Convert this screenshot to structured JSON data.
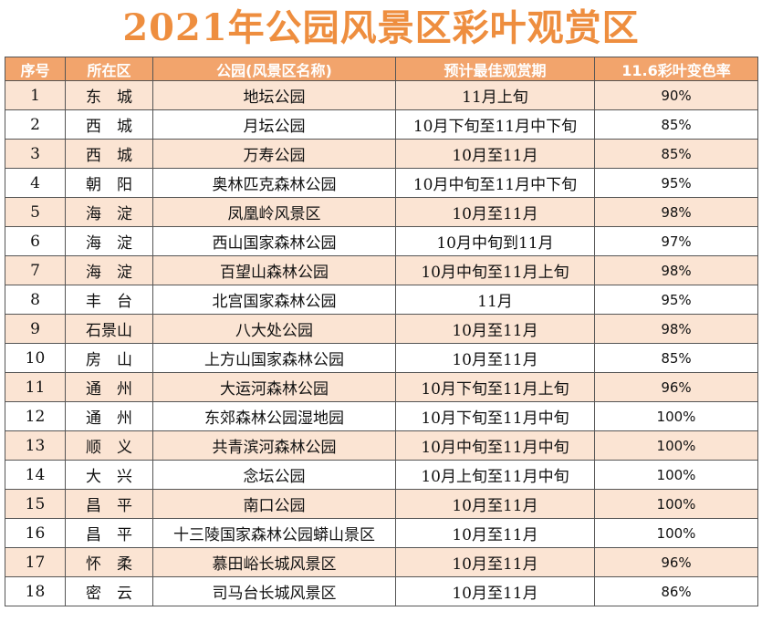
{
  "title": "2021年公园风景区彩叶观赏区",
  "headers": [
    "序号",
    "所在区",
    "公园(风景区名称)",
    "预计最佳观赏期",
    "11.6彩叶变色率"
  ],
  "rows": [
    {
      "no": "1",
      "district": "东　城",
      "park": "地坛公园",
      "period": "11月上旬",
      "rate": "90%"
    },
    {
      "no": "2",
      "district": "西　城",
      "park": "月坛公园",
      "period": "10月下旬至11月中下旬",
      "rate": "85%"
    },
    {
      "no": "3",
      "district": "西　城",
      "park": "万寿公园",
      "period": "10月至11月",
      "rate": "85%"
    },
    {
      "no": "4",
      "district": "朝　阳",
      "park": "奥林匹克森林公园",
      "period": "10月中旬至11月中下旬",
      "rate": "95%"
    },
    {
      "no": "5",
      "district": "海　淀",
      "park": "凤凰岭风景区",
      "period": "10月至11月",
      "rate": "98%"
    },
    {
      "no": "6",
      "district": "海　淀",
      "park": "西山国家森林公园",
      "period": "10月中旬到11月",
      "rate": "97%"
    },
    {
      "no": "7",
      "district": "海　淀",
      "park": "百望山森林公园",
      "period": "10月中旬至11月上旬",
      "rate": "98%"
    },
    {
      "no": "8",
      "district": "丰　台",
      "park": "北宫国家森林公园",
      "period": "11月",
      "rate": "95%"
    },
    {
      "no": "9",
      "district": "石景山",
      "park": "八大处公园",
      "period": "10月至11月",
      "rate": "98%"
    },
    {
      "no": "10",
      "district": "房　山",
      "park": "上方山国家森林公园",
      "period": "10月至11月",
      "rate": "85%"
    },
    {
      "no": "11",
      "district": "通　州",
      "park": "大运河森林公园",
      "period": "10月下旬至11月上旬",
      "rate": "96%"
    },
    {
      "no": "12",
      "district": "通　州",
      "park": "东郊森林公园湿地园",
      "period": "10月下旬至11月中旬",
      "rate": "100%"
    },
    {
      "no": "13",
      "district": "顺　义",
      "park": "共青滨河森林公园",
      "period": "10月中旬至11月中旬",
      "rate": "100%"
    },
    {
      "no": "14",
      "district": "大　兴",
      "park": "念坛公园",
      "period": "10月上旬至11月中旬",
      "rate": "100%"
    },
    {
      "no": "15",
      "district": "昌　平",
      "park": "南口公园",
      "period": "10月至11月",
      "rate": "100%"
    },
    {
      "no": "16",
      "district": "昌　平",
      "park": "十三陵国家森林公园蟒山景区",
      "period": "10月至11月",
      "rate": "100%"
    },
    {
      "no": "17",
      "district": "怀　柔",
      "park": "慕田峪长城风景区",
      "period": "10月至11月",
      "rate": "96%"
    },
    {
      "no": "18",
      "district": "密　云",
      "park": "司马台长城风景区",
      "period": "10月至11月",
      "rate": "86%"
    }
  ]
}
